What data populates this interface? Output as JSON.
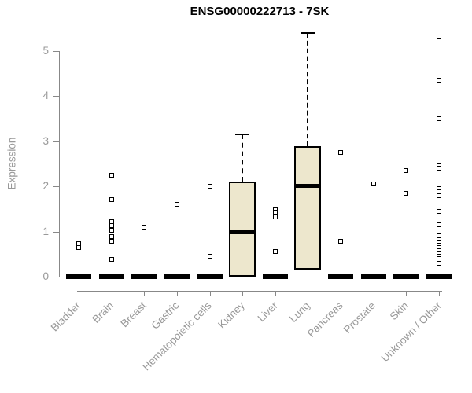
{
  "chart_data": {
    "type": "boxplot",
    "title": "ENSG00000222713 - 7SK",
    "ylabel": "Expression",
    "xlabel": "",
    "ylim": [
      0,
      5.45
    ],
    "yticks": [
      0,
      1,
      2,
      3,
      4,
      5
    ],
    "grid": false,
    "legend_position": "none",
    "categories": [
      "Bladder",
      "Brain",
      "Breast",
      "Gastric",
      "Hematopoietic cells",
      "Kidney",
      "Liver",
      "Lung",
      "Pancreas",
      "Prostate",
      "Skin",
      "Unknown / Other"
    ],
    "boxes": [
      {
        "category": "Bladder",
        "q1": 0,
        "median": 0,
        "q3": 0,
        "whisker_low": 0,
        "whisker_high": 0,
        "outliers": [
          0.74,
          0.65
        ]
      },
      {
        "category": "Brain",
        "q1": 0,
        "median": 0,
        "q3": 0,
        "whisker_low": 0,
        "whisker_high": 0,
        "outliers": [
          2.25,
          1.7,
          1.22,
          1.13,
          1.03,
          0.88,
          0.78,
          0.38
        ]
      },
      {
        "category": "Breast",
        "q1": 0,
        "median": 0,
        "q3": 0,
        "whisker_low": 0,
        "whisker_high": 0,
        "outliers": [
          1.1
        ]
      },
      {
        "category": "Gastric",
        "q1": 0,
        "median": 0,
        "q3": 0,
        "whisker_low": 0,
        "whisker_high": 0,
        "outliers": [
          1.6
        ]
      },
      {
        "category": "Hematopoietic cells",
        "q1": 0,
        "median": 0,
        "q3": 0,
        "whisker_low": 0,
        "whisker_high": 0,
        "outliers": [
          2.0,
          0.92,
          0.75,
          0.68,
          0.45
        ]
      },
      {
        "category": "Kidney",
        "q1": 0,
        "median": 1.0,
        "q3": 2.1,
        "whisker_low": 0,
        "whisker_high": 3.15,
        "outliers": []
      },
      {
        "category": "Liver",
        "q1": 0,
        "median": 0,
        "q3": 0,
        "whisker_low": 0,
        "whisker_high": 0,
        "outliers": [
          1.5,
          1.42,
          1.33,
          0.55
        ]
      },
      {
        "category": "Lung",
        "q1": 0.15,
        "median": 2.02,
        "q3": 2.9,
        "whisker_low": 0.15,
        "whisker_high": 5.4,
        "outliers": []
      },
      {
        "category": "Pancreas",
        "q1": 0,
        "median": 0,
        "q3": 0,
        "whisker_low": 0,
        "whisker_high": 0,
        "outliers": [
          2.75,
          0.78
        ]
      },
      {
        "category": "Prostate",
        "q1": 0,
        "median": 0,
        "q3": 0,
        "whisker_low": 0,
        "whisker_high": 0,
        "outliers": [
          2.05
        ]
      },
      {
        "category": "Skin",
        "q1": 0,
        "median": 0,
        "q3": 0,
        "whisker_low": 0,
        "whisker_high": 0,
        "outliers": [
          2.35,
          1.85
        ]
      },
      {
        "category": "Unknown / Other",
        "q1": 0,
        "median": 0,
        "q3": 0,
        "whisker_low": 0,
        "whisker_high": 0,
        "outliers": [
          5.25,
          4.35,
          3.5,
          2.45,
          2.4,
          1.95,
          1.88,
          1.8,
          1.45,
          1.32,
          1.15,
          1.0,
          0.9,
          0.82,
          0.76,
          0.7,
          0.64,
          0.58,
          0.52,
          0.46,
          0.4,
          0.34,
          0.3
        ]
      }
    ],
    "colors": {
      "box_fill": "#EDE7CD",
      "box_border": "#000000",
      "median": "#000000",
      "whisker": "#000000",
      "outlier_border": "#000000",
      "axis": "#888888",
      "tick_label": "#999999",
      "title": "#000000"
    }
  }
}
